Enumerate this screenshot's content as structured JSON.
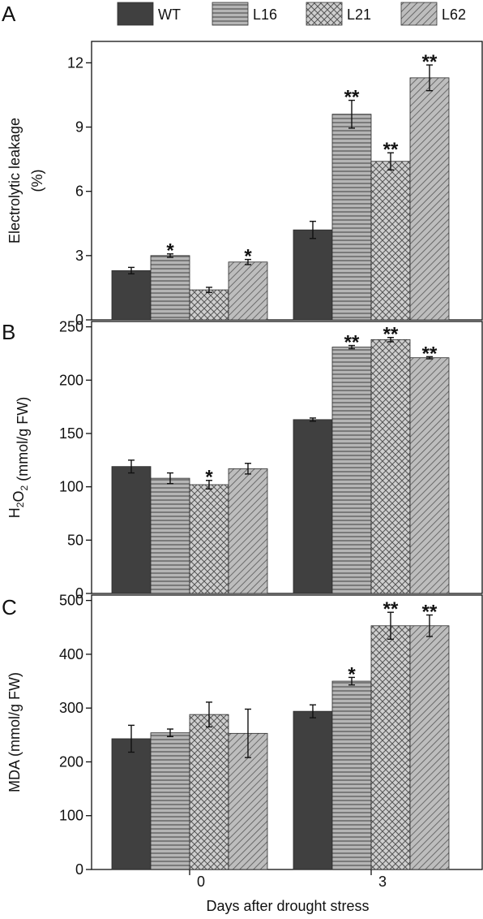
{
  "legend": [
    {
      "label": "WT",
      "pattern": "solid"
    },
    {
      "label": "L16",
      "pattern": "horizontal"
    },
    {
      "label": "L21",
      "pattern": "crosshatch"
    },
    {
      "label": "L62",
      "pattern": "diagonal"
    }
  ],
  "xlabel": "Days after drought stress",
  "colors": {
    "dark": "#404040",
    "mid": "#8a8a8a",
    "light": "#c4c4c4",
    "axis": "#111111"
  },
  "chart_data": [
    {
      "type": "bar",
      "panel_letter": "A",
      "ylabel_lines": [
        "Electrolytic leakage",
        "(%)"
      ],
      "categories": [
        "0",
        "3"
      ],
      "ylim": [
        0,
        13
      ],
      "yticks": [
        0,
        3,
        6,
        9,
        12
      ],
      "series": [
        {
          "name": "WT",
          "values": [
            2.3,
            4.2
          ],
          "errors": [
            0.15,
            0.4
          ],
          "marks": [
            "",
            ""
          ]
        },
        {
          "name": "L16",
          "values": [
            3.0,
            9.6
          ],
          "errors": [
            0.08,
            0.65
          ],
          "marks": [
            "*",
            "**"
          ]
        },
        {
          "name": "L21",
          "values": [
            1.4,
            7.4
          ],
          "errors": [
            0.12,
            0.4
          ],
          "marks": [
            "",
            "**"
          ]
        },
        {
          "name": "L62",
          "values": [
            2.7,
            11.3
          ],
          "errors": [
            0.12,
            0.6
          ],
          "marks": [
            "*",
            "**"
          ]
        }
      ]
    },
    {
      "type": "bar",
      "panel_letter": "B",
      "ylabel_lines": [
        "H2O2 (mmol/g FW)"
      ],
      "categories": [
        "0",
        "3"
      ],
      "ylim": [
        0,
        255
      ],
      "yticks": [
        0,
        50,
        100,
        150,
        200,
        250
      ],
      "series": [
        {
          "name": "WT",
          "values": [
            119,
            163
          ],
          "errors": [
            6,
            1.5
          ],
          "marks": [
            "",
            ""
          ]
        },
        {
          "name": "L16",
          "values": [
            108,
            231
          ],
          "errors": [
            5,
            1.5
          ],
          "marks": [
            "",
            "**"
          ]
        },
        {
          "name": "L21",
          "values": [
            102,
            238
          ],
          "errors": [
            4,
            2
          ],
          "marks": [
            "*",
            "**"
          ]
        },
        {
          "name": "L62",
          "values": [
            117,
            221
          ],
          "errors": [
            5,
            1
          ],
          "marks": [
            "",
            "**"
          ]
        }
      ]
    },
    {
      "type": "bar",
      "panel_letter": "C",
      "ylabel_lines": [
        "MDA (mmol/g FW)"
      ],
      "categories": [
        "0",
        "3"
      ],
      "ylim": [
        0,
        510
      ],
      "yticks": [
        0,
        100,
        200,
        300,
        400,
        500
      ],
      "series": [
        {
          "name": "WT",
          "values": [
            243,
            294
          ],
          "errors": [
            25,
            12
          ],
          "marks": [
            "",
            ""
          ]
        },
        {
          "name": "L16",
          "values": [
            254,
            350
          ],
          "errors": [
            7,
            7
          ],
          "marks": [
            "",
            "*"
          ]
        },
        {
          "name": "L21",
          "values": [
            288,
            453
          ],
          "errors": [
            23,
            25
          ],
          "marks": [
            "",
            "**"
          ]
        },
        {
          "name": "L62",
          "values": [
            253,
            453
          ],
          "errors": [
            45,
            20
          ],
          "marks": [
            "",
            "**"
          ]
        }
      ]
    }
  ]
}
